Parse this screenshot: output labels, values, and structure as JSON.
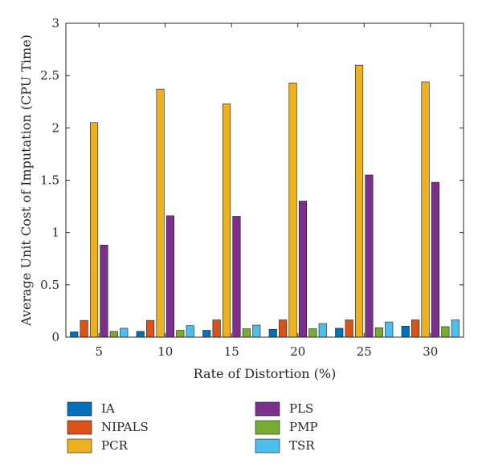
{
  "chart_data": {
    "type": "bar",
    "xlabel": "Rate of Distortion (%)",
    "ylabel": "Average Unit Cost of Imputation (CPU Time)",
    "ylim": [
      0,
      3
    ],
    "yticks": [
      0,
      0.5,
      1,
      1.5,
      2,
      2.5,
      3
    ],
    "ytick_labels": [
      "0",
      "0.5",
      "1",
      "1.5",
      "2",
      "2.5",
      "3"
    ],
    "categories": [
      "5",
      "10",
      "15",
      "20",
      "25",
      "30"
    ],
    "grid": false,
    "legend_placement": "bottom",
    "series": [
      {
        "name": "IA",
        "color": "#0072BD",
        "values": [
          0.05,
          0.055,
          0.065,
          0.075,
          0.085,
          0.105
        ]
      },
      {
        "name": "NIPALS",
        "color": "#D95319",
        "values": [
          0.16,
          0.16,
          0.165,
          0.165,
          0.165,
          0.165
        ]
      },
      {
        "name": "PCR",
        "color": "#EDB120",
        "values": [
          2.05,
          2.37,
          2.23,
          2.43,
          2.6,
          2.44
        ]
      },
      {
        "name": "PLS",
        "color": "#7E2F8E",
        "values": [
          0.88,
          1.16,
          1.155,
          1.3,
          1.55,
          1.48
        ]
      },
      {
        "name": "PMP",
        "color": "#77AC30",
        "values": [
          0.055,
          0.065,
          0.08,
          0.08,
          0.09,
          0.1
        ]
      },
      {
        "name": "TSR",
        "color": "#4DBEEE",
        "values": [
          0.085,
          0.11,
          0.115,
          0.13,
          0.145,
          0.165
        ]
      }
    ]
  }
}
